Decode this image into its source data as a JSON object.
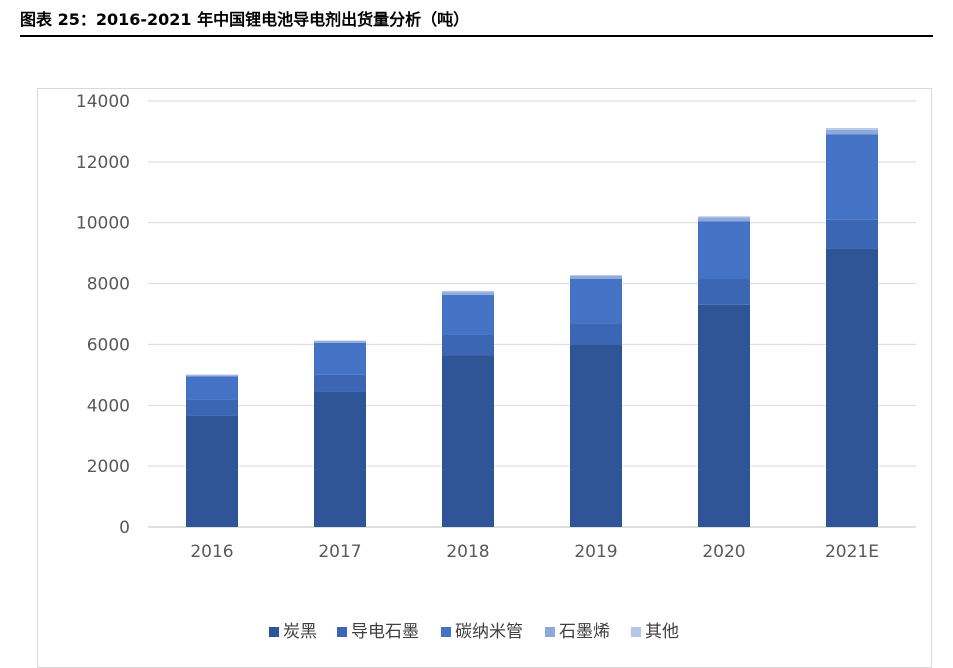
{
  "caption": "图表 25：2016-2021 年中国锂电池导电剂出货量分析（吨）",
  "chart_data": {
    "type": "bar",
    "stacked": true,
    "categories": [
      "2016",
      "2017",
      "2018",
      "2019",
      "2020",
      "2021E"
    ],
    "ylim": [
      0,
      14000
    ],
    "yticks": [
      0,
      2000,
      4000,
      6000,
      8000,
      10000,
      12000,
      14000
    ],
    "grid": true,
    "legend_position": "bottom",
    "series": [
      {
        "name": "炭黑",
        "color": "#2f5597",
        "values": [
          3650,
          4450,
          5650,
          6000,
          7300,
          9150
        ]
      },
      {
        "name": "导电石墨",
        "color": "#3c66b3",
        "values": [
          550,
          550,
          680,
          700,
          850,
          950
        ]
      },
      {
        "name": "碳纳米管",
        "color": "#4472c4",
        "values": [
          750,
          1050,
          1300,
          1450,
          1900,
          2800
        ]
      },
      {
        "name": "石墨烯",
        "color": "#8fa9db",
        "values": [
          40,
          60,
          90,
          100,
          120,
          150
        ]
      },
      {
        "name": "其他",
        "color": "#b4c7e7",
        "values": [
          20,
          20,
          40,
          30,
          40,
          60
        ]
      }
    ]
  }
}
